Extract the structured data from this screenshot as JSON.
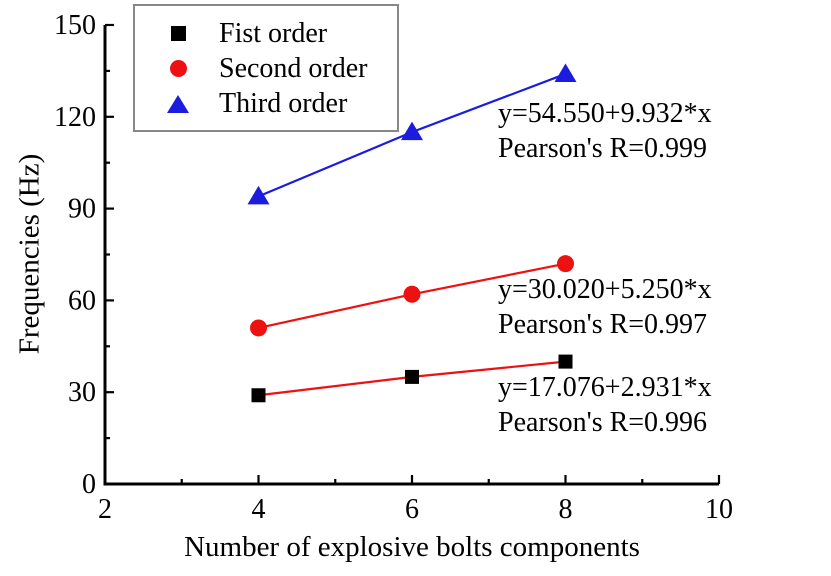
{
  "chart_data": {
    "type": "scatter",
    "xlabel": "Number of explosive bolts components",
    "ylabel": "Frequencies (Hz)",
    "xlim": [
      2,
      10
    ],
    "ylim": [
      0,
      150
    ],
    "xticks": [
      2,
      4,
      6,
      8,
      10
    ],
    "xtick_labels": [
      "2",
      "4",
      "6",
      "8",
      "10"
    ],
    "yticks": [
      0,
      30,
      60,
      90,
      120,
      150
    ],
    "ytick_labels": [
      "0",
      "30",
      "60",
      "90",
      "120",
      "150"
    ],
    "minor_xticks": [
      3,
      5,
      7,
      9
    ],
    "minor_yticks": [
      15,
      45,
      75,
      105,
      135
    ],
    "grid": false,
    "legend_position": "top-left",
    "x": [
      4,
      6,
      8
    ],
    "series": [
      {
        "name": "Fist order",
        "marker": "square",
        "marker_color": "#000000",
        "line_color": "#ee1111",
        "values": [
          29,
          35,
          40
        ],
        "fit_label": "y=17.076+2.931*x",
        "pearson_label": "Pearson's R=0.996"
      },
      {
        "name": "Second order",
        "marker": "circle",
        "marker_color": "#ee1111",
        "line_color": "#ee1111",
        "values": [
          51,
          62,
          72
        ],
        "fit_label": "y=30.020+5.250*x",
        "pearson_label": "Pearson's R=0.997"
      },
      {
        "name": "Third order",
        "marker": "triangle",
        "marker_color": "#1c1cdf",
        "line_color": "#1c1cdf",
        "values": [
          94,
          115,
          134
        ],
        "fit_label": "y=54.550+9.932*x",
        "pearson_label": "Pearson's R=0.999"
      }
    ],
    "colors": {
      "axis": "#000000",
      "red": "#ee1111",
      "blue": "#1c1cdf",
      "legend_border": "#888888"
    }
  }
}
